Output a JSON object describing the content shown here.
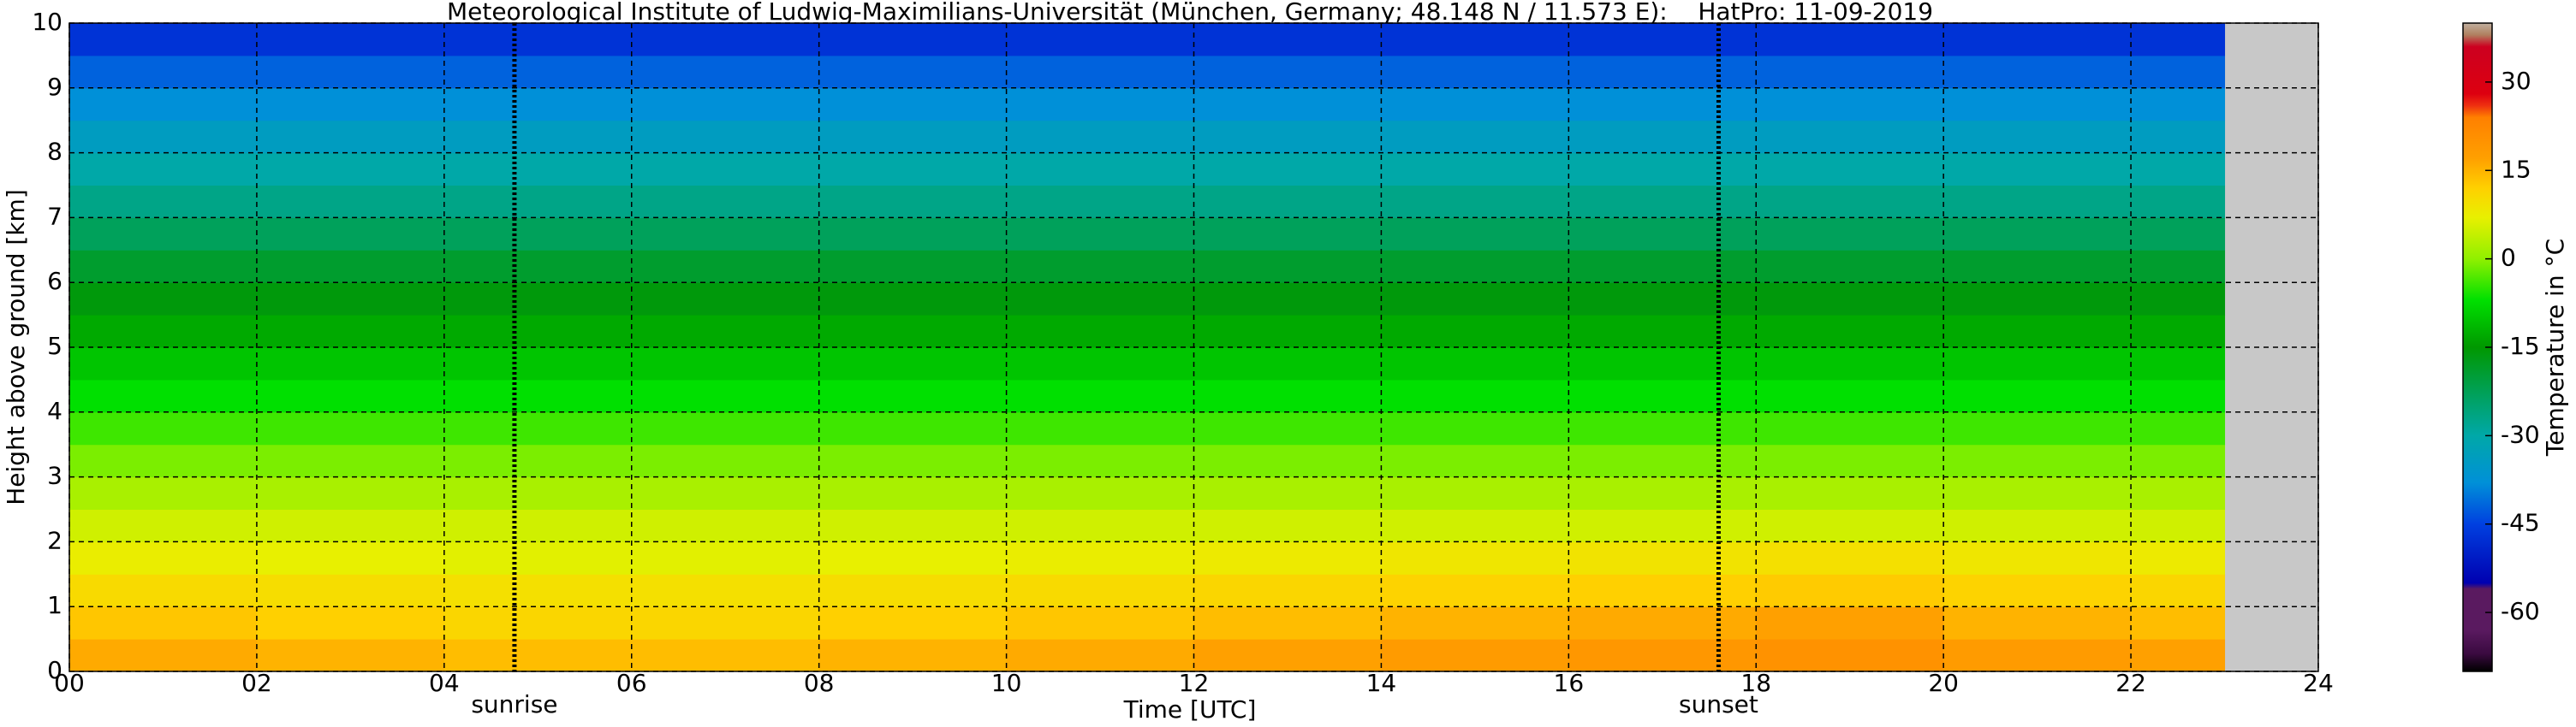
{
  "chart_data": {
    "type": "heatmap",
    "title": "Meteorological Institute of Ludwig-Maximilians-Universität (München, Germany; 48.148 N / 11.573 E):    HatPro: 11-09-2019",
    "xlabel": "Time [UTC]",
    "ylabel": "Height above ground [km]",
    "xlim": [
      0,
      24
    ],
    "ylim": [
      0,
      10
    ],
    "xticks": [
      {
        "value": 0,
        "label": "00"
      },
      {
        "value": 2,
        "label": "02"
      },
      {
        "value": 4,
        "label": "04"
      },
      {
        "value": 6,
        "label": "06"
      },
      {
        "value": 8,
        "label": "08"
      },
      {
        "value": 10,
        "label": "10"
      },
      {
        "value": 12,
        "label": "12"
      },
      {
        "value": 14,
        "label": "14"
      },
      {
        "value": 16,
        "label": "16"
      },
      {
        "value": 18,
        "label": "18"
      },
      {
        "value": 20,
        "label": "20"
      },
      {
        "value": 22,
        "label": "22"
      },
      {
        "value": 24,
        "label": "24"
      }
    ],
    "yticks": [
      0,
      1,
      2,
      3,
      4,
      5,
      6,
      7,
      8,
      9,
      10
    ],
    "grid": true,
    "no_data_color": "#c8c8c8",
    "x_edges": [
      0,
      2,
      4,
      6,
      8,
      10,
      12,
      14,
      16,
      18,
      20,
      22,
      23
    ],
    "y_edges": [
      0,
      0.5,
      1,
      1.5,
      2,
      2.5,
      3,
      3.5,
      4,
      4.5,
      5,
      5.5,
      6,
      6.5,
      7,
      7.5,
      8,
      8.5,
      9,
      9.5,
      10
    ],
    "z": [
      [
        16,
        15,
        14,
        14,
        15,
        16,
        17,
        18,
        19,
        20,
        18,
        17
      ],
      [
        13,
        12,
        11,
        11,
        12,
        13,
        14,
        15,
        16,
        17,
        15,
        14
      ],
      [
        10.5,
        10,
        9.5,
        9.5,
        10,
        10.5,
        11,
        11.5,
        12,
        12.5,
        11.5,
        11
      ],
      [
        7.5,
        7,
        6.5,
        6.5,
        7,
        7.5,
        8,
        8.5,
        9,
        9.5,
        8.5,
        8
      ],
      [
        5,
        5,
        5,
        5,
        5,
        5,
        5,
        5,
        5,
        5,
        5,
        5
      ],
      [
        2,
        2,
        2,
        2,
        2,
        2,
        2,
        2,
        2,
        2,
        2,
        2
      ],
      [
        -1,
        -1,
        -1,
        -1,
        -1,
        -1,
        -1,
        -1,
        -1,
        -1,
        -1,
        -1
      ],
      [
        -4,
        -4,
        -4,
        -4,
        -4,
        -4,
        -4,
        -4,
        -4,
        -4,
        -4,
        -4
      ],
      [
        -7,
        -7,
        -7,
        -7,
        -7,
        -7,
        -7,
        -7,
        -7,
        -7,
        -7,
        -7
      ],
      [
        -10,
        -10,
        -10,
        -10,
        -10,
        -10,
        -10,
        -10,
        -10,
        -10,
        -10,
        -10
      ],
      [
        -13,
        -13,
        -13,
        -13,
        -13,
        -13,
        -13,
        -13,
        -13,
        -13,
        -13,
        -13
      ],
      [
        -16,
        -16,
        -16,
        -16,
        -16,
        -16,
        -16,
        -16,
        -16,
        -16,
        -16,
        -16
      ],
      [
        -19,
        -19,
        -19,
        -19,
        -19,
        -19,
        -19,
        -19,
        -19,
        -19,
        -19,
        -19
      ],
      [
        -23,
        -23,
        -23,
        -23,
        -23,
        -23,
        -23,
        -23,
        -23,
        -23,
        -23,
        -23
      ],
      [
        -27,
        -27,
        -27,
        -27,
        -27,
        -27,
        -27,
        -27,
        -27,
        -27,
        -27,
        -27
      ],
      [
        -30,
        -30,
        -30,
        -30,
        -30,
        -30,
        -30,
        -30,
        -30,
        -30,
        -30,
        -30
      ],
      [
        -34,
        -34,
        -34,
        -34,
        -34,
        -34,
        -34,
        -34,
        -34,
        -34,
        -34,
        -34
      ],
      [
        -38,
        -38,
        -38,
        -38,
        -38,
        -38,
        -38,
        -38,
        -38,
        -38,
        -38,
        -38
      ],
      [
        -42,
        -42,
        -42,
        -42,
        -42,
        -42,
        -42,
        -42,
        -42,
        -42,
        -42,
        -42
      ],
      [
        -47,
        -47,
        -47,
        -47,
        -47,
        -47,
        -47,
        -47,
        -47,
        -47,
        -47,
        -47
      ]
    ],
    "annotations": [
      {
        "text": "sunrise",
        "x": 4.75
      },
      {
        "text": "sunset",
        "x": 17.6
      }
    ],
    "colorbar": {
      "label": "Temperature in °C",
      "clim": [
        -70,
        40
      ],
      "ticks": [
        -60,
        -45,
        -30,
        -15,
        0,
        15,
        30
      ],
      "stops": [
        {
          "value": -70,
          "color": "#000000"
        },
        {
          "value": -67,
          "color": "#3a0a40"
        },
        {
          "value": -63,
          "color": "#5a1a60"
        },
        {
          "value": -56,
          "color": "#5a1a60"
        },
        {
          "value": -55,
          "color": "#0000b0"
        },
        {
          "value": -45,
          "color": "#0040e0"
        },
        {
          "value": -38,
          "color": "#0090d8"
        },
        {
          "value": -30,
          "color": "#00a8a8"
        },
        {
          "value": -22,
          "color": "#00a050"
        },
        {
          "value": -15,
          "color": "#009800"
        },
        {
          "value": -7,
          "color": "#00e000"
        },
        {
          "value": 0,
          "color": "#90f000"
        },
        {
          "value": 7,
          "color": "#e8f000"
        },
        {
          "value": 12,
          "color": "#ffd000"
        },
        {
          "value": 17,
          "color": "#ffa000"
        },
        {
          "value": 24,
          "color": "#ff8000"
        },
        {
          "value": 26,
          "color": "#ee3010"
        },
        {
          "value": 28,
          "color": "#dd0010"
        },
        {
          "value": 36,
          "color": "#cc0020"
        },
        {
          "value": 38,
          "color": "#b08060"
        },
        {
          "value": 40,
          "color": "#c0b0a0"
        }
      ]
    }
  }
}
